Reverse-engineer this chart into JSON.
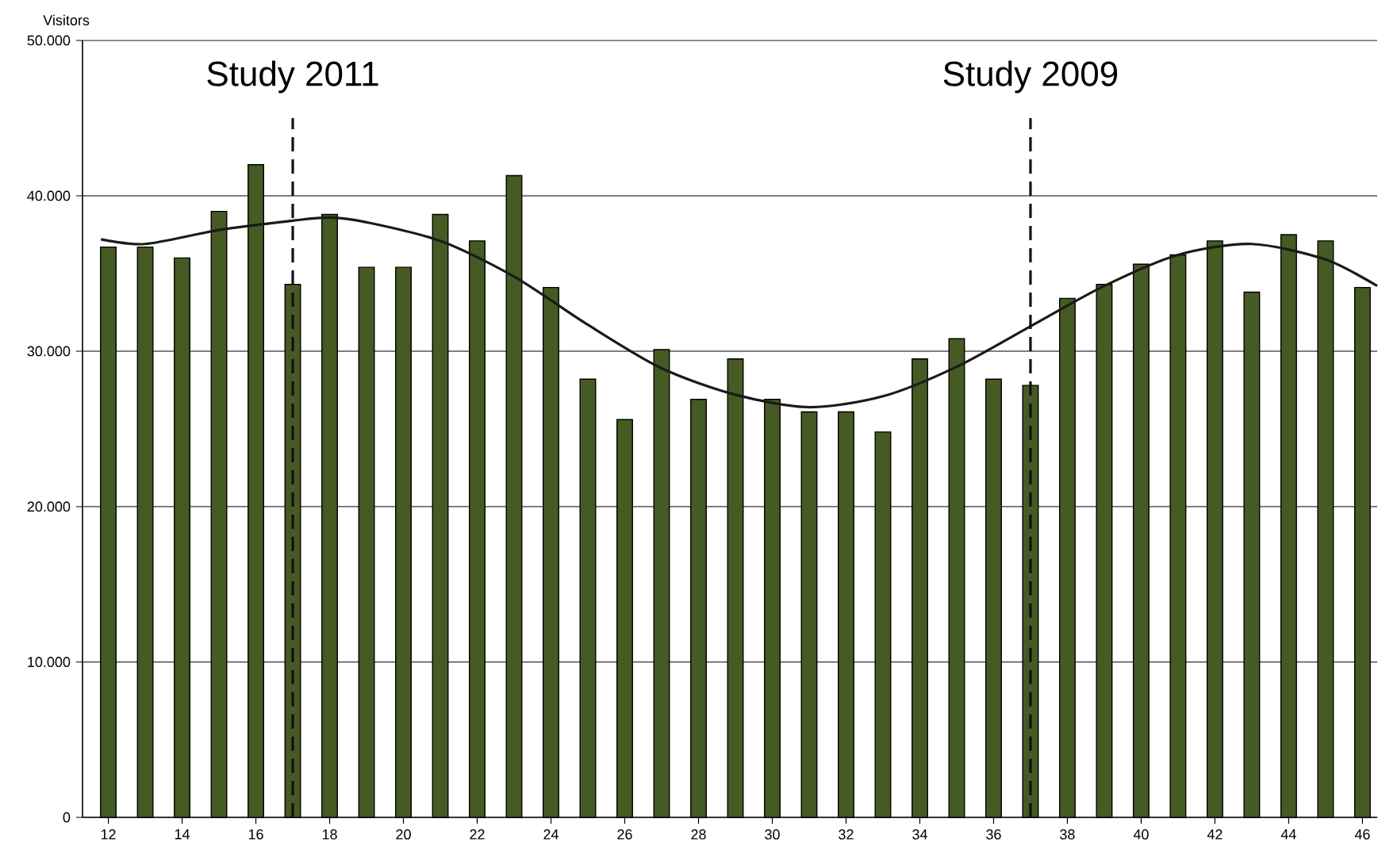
{
  "chart_data": {
    "type": "bar",
    "ylabel": "Visitors",
    "x": [
      12,
      13,
      14,
      15,
      16,
      17,
      18,
      19,
      20,
      21,
      22,
      23,
      24,
      25,
      26,
      27,
      28,
      29,
      30,
      31,
      32,
      33,
      34,
      35,
      36,
      37,
      38,
      39,
      40,
      41,
      42,
      43,
      44,
      45,
      46
    ],
    "series": [
      {
        "color": "#465a24",
        "values": [
          36700,
          36700,
          36000,
          39000,
          42000,
          34300,
          38800,
          35400,
          35400,
          38800,
          37100,
          41300,
          34100,
          28200,
          25600,
          30100,
          26900,
          29500,
          26900,
          26100,
          26100,
          24800,
          29500,
          30800,
          28200,
          27800,
          33400,
          34300,
          35600,
          36200,
          37100,
          33800,
          37500,
          37100,
          34100
        ]
      },
      {
        "type": "line",
        "color": "#1a1a1a",
        "x": [
          11.8,
          13,
          15,
          17,
          18,
          19,
          21,
          23,
          25,
          27,
          29,
          31,
          33,
          35,
          37,
          39,
          41,
          43,
          45,
          46.4
        ],
        "values": [
          37200,
          36900,
          37800,
          38400,
          38600,
          38300,
          37100,
          34800,
          31700,
          28900,
          27200,
          26400,
          27100,
          29000,
          31600,
          34200,
          36200,
          36900,
          35900,
          34200
        ]
      }
    ],
    "xlim": [
      11.3,
      46.4
    ],
    "xticks": [
      12,
      14,
      16,
      18,
      20,
      22,
      24,
      26,
      28,
      30,
      32,
      34,
      36,
      38,
      40,
      42,
      44,
      46
    ],
    "ylim": [
      0,
      50000
    ],
    "yticks": [
      0,
      {
        "value": 10000,
        "label": "10.000"
      },
      {
        "value": 20000,
        "label": "20.000"
      },
      {
        "value": 30000,
        "label": "30.000"
      },
      {
        "value": 40000,
        "label": "40.000"
      },
      {
        "value": 50000,
        "label": "50.000"
      }
    ],
    "grid": "y",
    "ref_lines": [
      {
        "axis": "x",
        "value": 17,
        "label": "Study 2011",
        "line_style": "dashed",
        "color": "#111111"
      },
      {
        "axis": "x",
        "value": 37,
        "label": "Study 2009",
        "line_style": "dashed",
        "color": "#111111"
      }
    ]
  }
}
